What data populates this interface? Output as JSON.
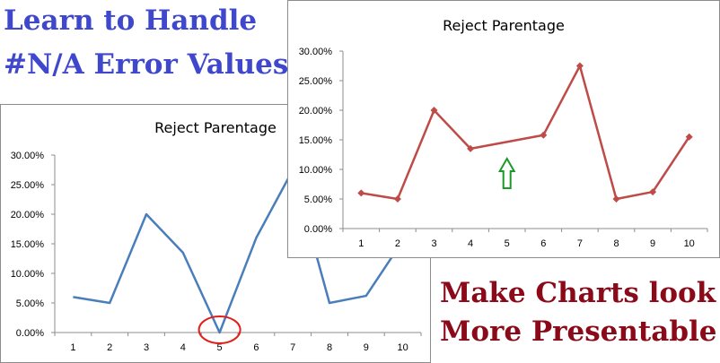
{
  "headlines": {
    "top_line1": "Learn to Handle",
    "top_line2": "#N/A Error Values",
    "bottom_line1": "Make Charts look",
    "bottom_line2": "More Presentable"
  },
  "colors": {
    "headline_top": "#3f48cc",
    "headline_bottom": "#8b0a1a",
    "series_blue": "#4a7ebb",
    "series_red": "#be4b48",
    "highlight_circle": "#e0201b",
    "arrow": "#1a9a2a"
  },
  "annotations": {
    "back_chart_gap_marker": "red-ellipse-circle-around-x-5",
    "front_chart_gap_marker": "green-up-arrow-under-x-5"
  },
  "chart_data": [
    {
      "id": "chart-back",
      "type": "line",
      "title": "Reject Parentage",
      "xlabel": "",
      "ylabel": "",
      "categories": [
        "1",
        "2",
        "3",
        "4",
        "5",
        "6",
        "7",
        "8",
        "9",
        "10"
      ],
      "series": [
        {
          "values": [
            0.06,
            0.05,
            0.2,
            0.135,
            0.0,
            0.16,
            0.275,
            0.05,
            0.062,
            0.155
          ],
          "color": "#4a7ebb",
          "marker": "none"
        }
      ],
      "ylim": [
        0,
        0.3
      ],
      "yticks": [
        0,
        0.05,
        0.1,
        0.15,
        0.2,
        0.25,
        0.3
      ],
      "ytick_labels": [
        "0.00%",
        "5.00%",
        "10.00%",
        "15.00%",
        "20.00%",
        "25.00%",
        "30.00%"
      ],
      "grid": false,
      "legend": "none",
      "note": "value at x=5 plotted as zero"
    },
    {
      "id": "chart-front",
      "type": "line",
      "title": "Reject Parentage",
      "xlabel": "",
      "ylabel": "",
      "categories": [
        "1",
        "2",
        "3",
        "4",
        "5",
        "6",
        "7",
        "8",
        "9",
        "10"
      ],
      "series": [
        {
          "values": [
            0.06,
            0.05,
            0.2,
            0.135,
            null,
            0.158,
            0.275,
            0.05,
            0.062,
            0.155
          ],
          "color": "#be4b48",
          "marker": "diamond",
          "connect_gaps": true
        }
      ],
      "ylim": [
        0,
        0.3
      ],
      "yticks": [
        0,
        0.05,
        0.1,
        0.15,
        0.2,
        0.25,
        0.3
      ],
      "ytick_labels": [
        "0.00%",
        "5.00%",
        "10.00%",
        "15.00%",
        "20.00%",
        "25.00%",
        "30.00%"
      ],
      "grid": false,
      "legend": "none",
      "note": "value at x=5 is #N/A, line connects across the gap"
    }
  ]
}
